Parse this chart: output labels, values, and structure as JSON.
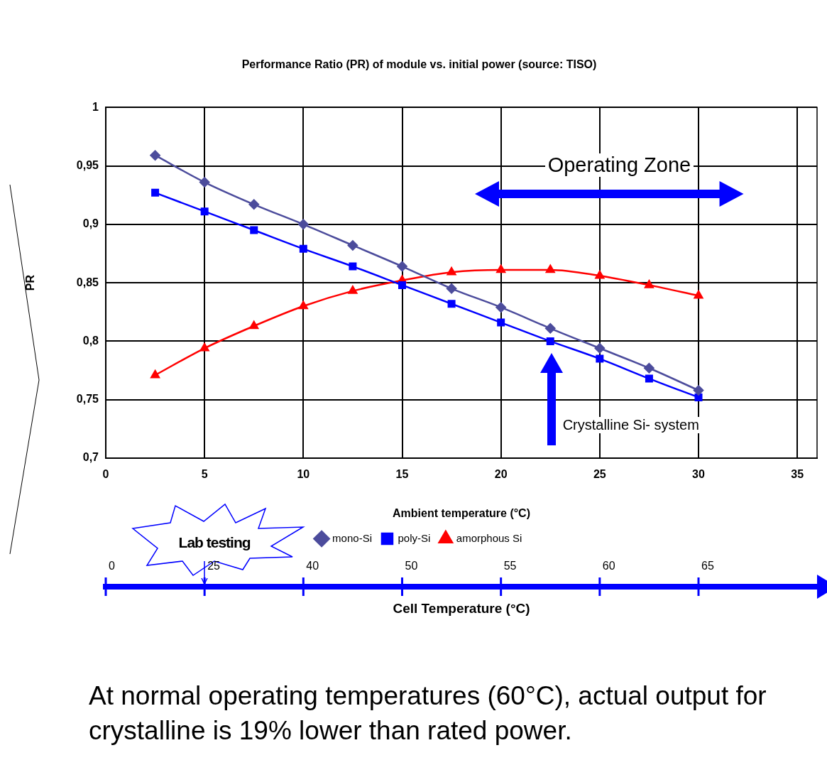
{
  "chart_data": {
    "type": "line",
    "title": "Performance Ratio (PR) of module vs. initial power (source: TISO)",
    "xlabel": "Ambient temperature (°C)",
    "ylabel": "PR",
    "x": [
      2.5,
      5,
      7.5,
      10,
      12.5,
      15,
      17.5,
      20,
      22.5,
      25,
      27.5,
      30
    ],
    "series": [
      {
        "name": "mono-Si",
        "color": "#4c4c9c",
        "marker": "diamond",
        "values": [
          0.959,
          0.936,
          0.917,
          0.9,
          0.882,
          0.864,
          0.845,
          0.829,
          0.811,
          0.794,
          0.777,
          0.758
        ]
      },
      {
        "name": "poly-Si",
        "color": "#0000ff",
        "marker": "square",
        "values": [
          0.927,
          0.911,
          0.895,
          0.879,
          0.864,
          0.848,
          0.832,
          0.816,
          0.8,
          0.785,
          0.768,
          0.752
        ]
      },
      {
        "name": "amorphous Si",
        "color": "#ff0000",
        "marker": "triangle",
        "values": [
          0.771,
          0.794,
          0.813,
          0.83,
          0.843,
          0.852,
          0.859,
          0.861,
          0.861,
          0.856,
          0.848,
          0.839
        ]
      }
    ],
    "xlim": [
      0,
      36
    ],
    "xticks": [
      0,
      5,
      10,
      15,
      20,
      25,
      30,
      35
    ],
    "ylim": [
      0.7,
      1
    ],
    "yticks": [
      {
        "value": 0.7,
        "label": "0,7"
      },
      {
        "value": 0.75,
        "label": "0,75"
      },
      {
        "value": 0.8,
        "label": "0,8"
      },
      {
        "value": 0.85,
        "label": "0,85"
      },
      {
        "value": 0.9,
        "label": "0,9"
      },
      {
        "value": 0.95,
        "label": "0,95"
      },
      1
    ],
    "grid": true,
    "legend": "bottom",
    "annotations": [
      "Operating Zone",
      "Crystalline Si- system",
      "Lab testing",
      "At normal operating temperatures (60°C), actual output for crystalline is 19% lower than rated power.",
      "Cell Temperature (°C)",
      "0",
      "25",
      "40",
      "50",
      "55",
      "60",
      "65"
    ]
  }
}
